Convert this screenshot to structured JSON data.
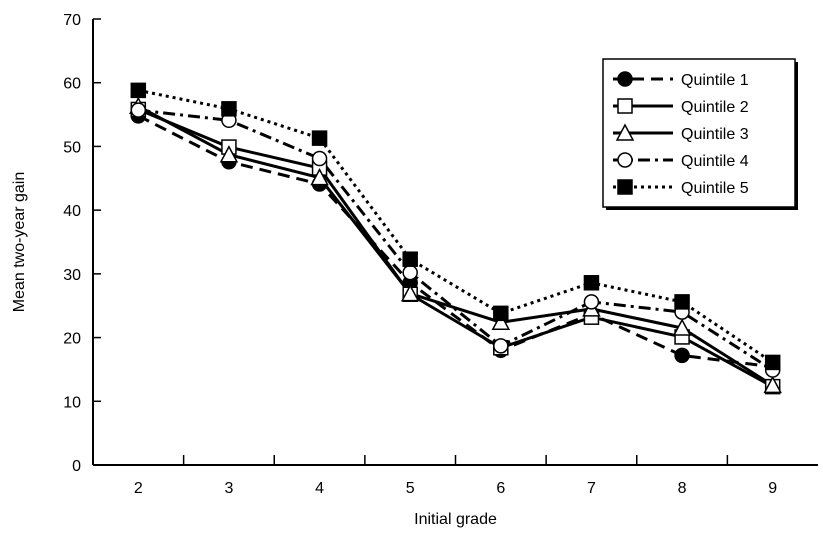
{
  "chart_data": {
    "type": "line",
    "title": "",
    "xlabel": "Initial grade",
    "ylabel": "Mean two-year gain",
    "categories": [
      "2",
      "3",
      "4",
      "5",
      "6",
      "7",
      "8",
      "9"
    ],
    "ylim": [
      0,
      70
    ],
    "yticks": [
      0,
      10,
      20,
      30,
      40,
      50,
      60,
      70
    ],
    "grid": false,
    "legend_position": "top-right",
    "series": [
      {
        "name": "Quintile 1",
        "marker": "filled-circle",
        "line_style": "dashed",
        "values": [
          54.8,
          47.6,
          44.1,
          28.6,
          18.0,
          23.7,
          17.2,
          15.4
        ]
      },
      {
        "name": "Quintile 2",
        "marker": "open-square",
        "line_style": "solid",
        "values": [
          55.8,
          49.9,
          46.6,
          26.8,
          18.4,
          23.2,
          20.1,
          12.3
        ]
      },
      {
        "name": "Quintile 3",
        "marker": "open-triangle",
        "line_style": "solid",
        "values": [
          56.3,
          48.7,
          45.1,
          26.9,
          22.4,
          24.5,
          21.5,
          12.5
        ]
      },
      {
        "name": "Quintile 4",
        "marker": "open-circle",
        "line_style": "dash-dot",
        "values": [
          55.7,
          54.1,
          48.1,
          30.2,
          18.7,
          25.6,
          24.0,
          14.9
        ]
      },
      {
        "name": "Quintile 5",
        "marker": "filled-square",
        "line_style": "dotted",
        "values": [
          58.8,
          55.9,
          51.3,
          32.3,
          23.8,
          28.6,
          25.6,
          16.1
        ]
      }
    ]
  }
}
